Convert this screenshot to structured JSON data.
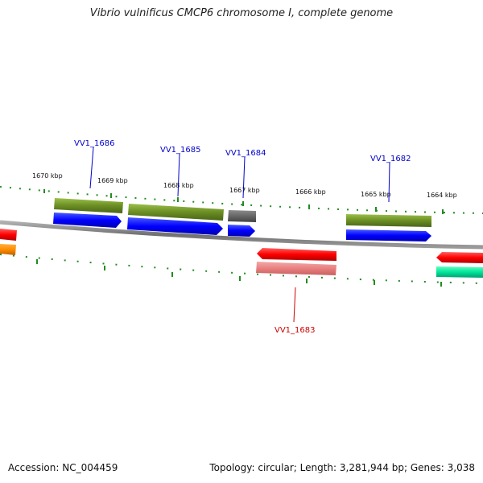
{
  "title": "Vibrio vulnificus CMCP6 chromosome I, complete genome",
  "footer": {
    "accession": "Accession: NC_004459",
    "summary": "Topology: circular; Length: 3,281,944 bp; Genes: 3,038"
  },
  "colors": {
    "backbone": "#808080",
    "tick": "#228b22",
    "label_plus": "#0000cc",
    "label_minus": "#cc0000",
    "cds_plus": "#0000ff",
    "gene_olive": "#6b8e23",
    "gene_gray": "#666666",
    "cds_minus": "#ff0000",
    "gene_minus_light": "#e88080",
    "orange": "#ff8c00",
    "teal": "#00e59a"
  },
  "scale": {
    "unit": "kbp",
    "labels": [
      "1670 kbp",
      "1669 kbp",
      "1668 kbp",
      "1667 kbp",
      "1666 kbp",
      "1665 kbp",
      "1664 kbp"
    ]
  },
  "genes": [
    {
      "label": "VV1_1686",
      "strand": "+"
    },
    {
      "label": "VV1_1685",
      "strand": "+"
    },
    {
      "label": "VV1_1684",
      "strand": "+"
    },
    {
      "label": "VV1_1682",
      "strand": "+"
    },
    {
      "label": "VV1_1683",
      "strand": "-"
    }
  ]
}
